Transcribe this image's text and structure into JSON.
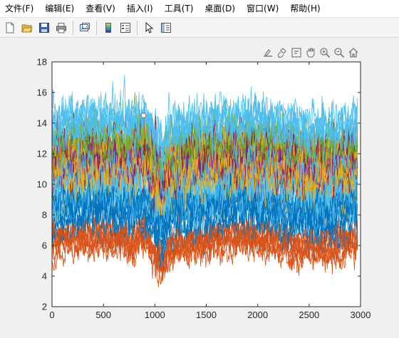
{
  "menubar": {
    "items": [
      "文件(F)",
      "编辑(E)",
      "查看(V)",
      "插入(I)",
      "工具(T)",
      "桌面(D)",
      "窗口(W)",
      "帮助(H)"
    ]
  },
  "toolbar": {
    "buttons": [
      "new-figure-icon",
      "open-file-icon",
      "save-icon",
      "print-icon",
      "link-plot-icon",
      "insert-colorbar-icon",
      "insert-legend-icon",
      "edit-plot-arrow-icon",
      "property-inspector-icon"
    ]
  },
  "axes_toolbar": {
    "buttons": [
      "export-icon",
      "brush-icon",
      "datatip-icon",
      "pan-icon",
      "zoom-in-icon",
      "zoom-out-icon",
      "home-icon"
    ]
  },
  "colors": {
    "series": [
      "#0072BD",
      "#D95319",
      "#EDB120",
      "#7E2F8E",
      "#77AC30",
      "#4DBEEE",
      "#A2142F"
    ]
  },
  "chart_data": {
    "type": "line",
    "title": "",
    "xlabel": "",
    "ylabel": "",
    "xlim": [
      0,
      3000
    ],
    "ylim": [
      2,
      18
    ],
    "xticks": [
      0,
      500,
      1000,
      1500,
      2000,
      2500,
      3000
    ],
    "yticks": [
      2,
      4,
      6,
      8,
      10,
      12,
      14,
      16,
      18
    ],
    "x_range": [
      1,
      2975
    ],
    "grid": false,
    "legend": "none",
    "n_series_estimate": 60,
    "series_bands": [
      {
        "color": "#D95319",
        "approx_mean": 6,
        "approx_range": [
          3.3,
          8.3
        ]
      },
      {
        "color": "#0072BD",
        "approx_mean": 8,
        "approx_range": [
          4.2,
          11
        ]
      },
      {
        "color": "#4DBEEE",
        "approx_mean": 10,
        "approx_range": [
          6.5,
          15
        ]
      },
      {
        "color": "#EDB120",
        "approx_mean": 11,
        "approx_range": [
          8,
          15.8
        ]
      },
      {
        "color": "#A2142F",
        "approx_mean": 11.5,
        "approx_range": [
          8,
          16
        ]
      },
      {
        "color": "#7E2F8E",
        "approx_mean": 12,
        "approx_range": [
          9,
          15.5
        ]
      },
      {
        "color": "#77AC30",
        "approx_mean": 12.5,
        "approx_range": [
          9,
          16
        ]
      },
      {
        "color": "#4DBEEE",
        "approx_mean": 13.5,
        "approx_range": [
          10,
          17.1
        ]
      }
    ],
    "marker": {
      "x": 890,
      "y": 14.5
    }
  }
}
